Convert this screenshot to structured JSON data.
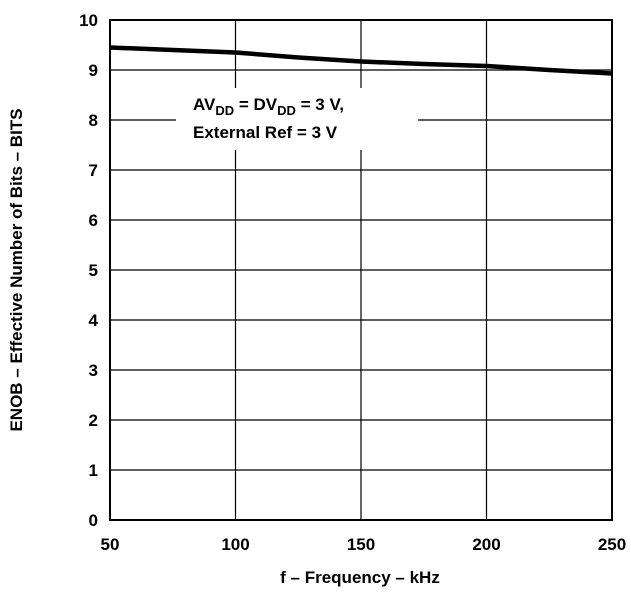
{
  "chart_data": {
    "type": "line",
    "title": "",
    "xlabel": "f – Frequency – kHz",
    "ylabel": "ENOB – Effective Number of Bits – BITS",
    "xlim": [
      50,
      250
    ],
    "ylim": [
      0,
      10
    ],
    "x_ticks": [
      50,
      100,
      150,
      200,
      250
    ],
    "y_ticks": [
      0,
      1,
      2,
      3,
      4,
      5,
      6,
      7,
      8,
      9,
      10
    ],
    "grid": true,
    "series": [
      {
        "x": [
          50,
          75,
          100,
          125,
          150,
          175,
          200,
          225,
          250
        ],
        "y": [
          9.45,
          9.4,
          9.35,
          9.25,
          9.17,
          9.12,
          9.08,
          9.0,
          8.93
        ]
      }
    ],
    "annotation": {
      "line1": {
        "p1": "AV",
        "s1": "DD",
        "p2": " = DV",
        "s2": "DD",
        "p3": " = 3 V,"
      },
      "line2": "External Ref = 3 V"
    },
    "colors": {
      "line": "#000000",
      "grid": "#000000",
      "background": "#ffffff"
    }
  }
}
